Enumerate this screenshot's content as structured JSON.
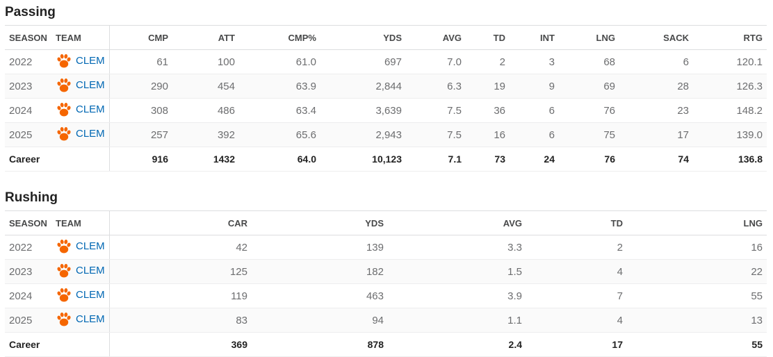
{
  "colors": {
    "link": "#0067b3",
    "paw": "#f56600",
    "header_text": "#48494a",
    "body_text": "#6c6d6f",
    "title_text": "#222222"
  },
  "passing": {
    "title": "Passing",
    "columns": [
      "SEASON",
      "TEAM",
      "CMP",
      "ATT",
      "CMP%",
      "YDS",
      "AVG",
      "TD",
      "INT",
      "LNG",
      "SACK",
      "RTG"
    ],
    "rows": [
      {
        "season": "2022",
        "team": "CLEM",
        "team_icon": "clemson-paw-icon",
        "stats": [
          "61",
          "100",
          "61.0",
          "697",
          "7.0",
          "2",
          "3",
          "68",
          "6",
          "120.1"
        ]
      },
      {
        "season": "2023",
        "team": "CLEM",
        "team_icon": "clemson-paw-icon",
        "stats": [
          "290",
          "454",
          "63.9",
          "2,844",
          "6.3",
          "19",
          "9",
          "69",
          "28",
          "126.3"
        ]
      },
      {
        "season": "2024",
        "team": "CLEM",
        "team_icon": "clemson-paw-icon",
        "stats": [
          "308",
          "486",
          "63.4",
          "3,639",
          "7.5",
          "36",
          "6",
          "76",
          "23",
          "148.2"
        ]
      },
      {
        "season": "2025",
        "team": "CLEM",
        "team_icon": "clemson-paw-icon",
        "stats": [
          "257",
          "392",
          "65.6",
          "2,943",
          "7.5",
          "16",
          "6",
          "75",
          "17",
          "139.0"
        ]
      }
    ],
    "career": {
      "label": "Career",
      "stats": [
        "916",
        "1432",
        "64.0",
        "10,123",
        "7.1",
        "73",
        "24",
        "76",
        "74",
        "136.8"
      ]
    }
  },
  "rushing": {
    "title": "Rushing",
    "columns": [
      "SEASON",
      "TEAM",
      "CAR",
      "YDS",
      "AVG",
      "TD",
      "LNG"
    ],
    "rows": [
      {
        "season": "2022",
        "team": "CLEM",
        "team_icon": "clemson-paw-icon",
        "stats": [
          "42",
          "139",
          "3.3",
          "2",
          "16"
        ]
      },
      {
        "season": "2023",
        "team": "CLEM",
        "team_icon": "clemson-paw-icon",
        "stats": [
          "125",
          "182",
          "1.5",
          "4",
          "22"
        ]
      },
      {
        "season": "2024",
        "team": "CLEM",
        "team_icon": "clemson-paw-icon",
        "stats": [
          "119",
          "463",
          "3.9",
          "7",
          "55"
        ]
      },
      {
        "season": "2025",
        "team": "CLEM",
        "team_icon": "clemson-paw-icon",
        "stats": [
          "83",
          "94",
          "1.1",
          "4",
          "13"
        ]
      }
    ],
    "career": {
      "label": "Career",
      "stats": [
        "369",
        "878",
        "2.4",
        "17",
        "55"
      ]
    }
  }
}
